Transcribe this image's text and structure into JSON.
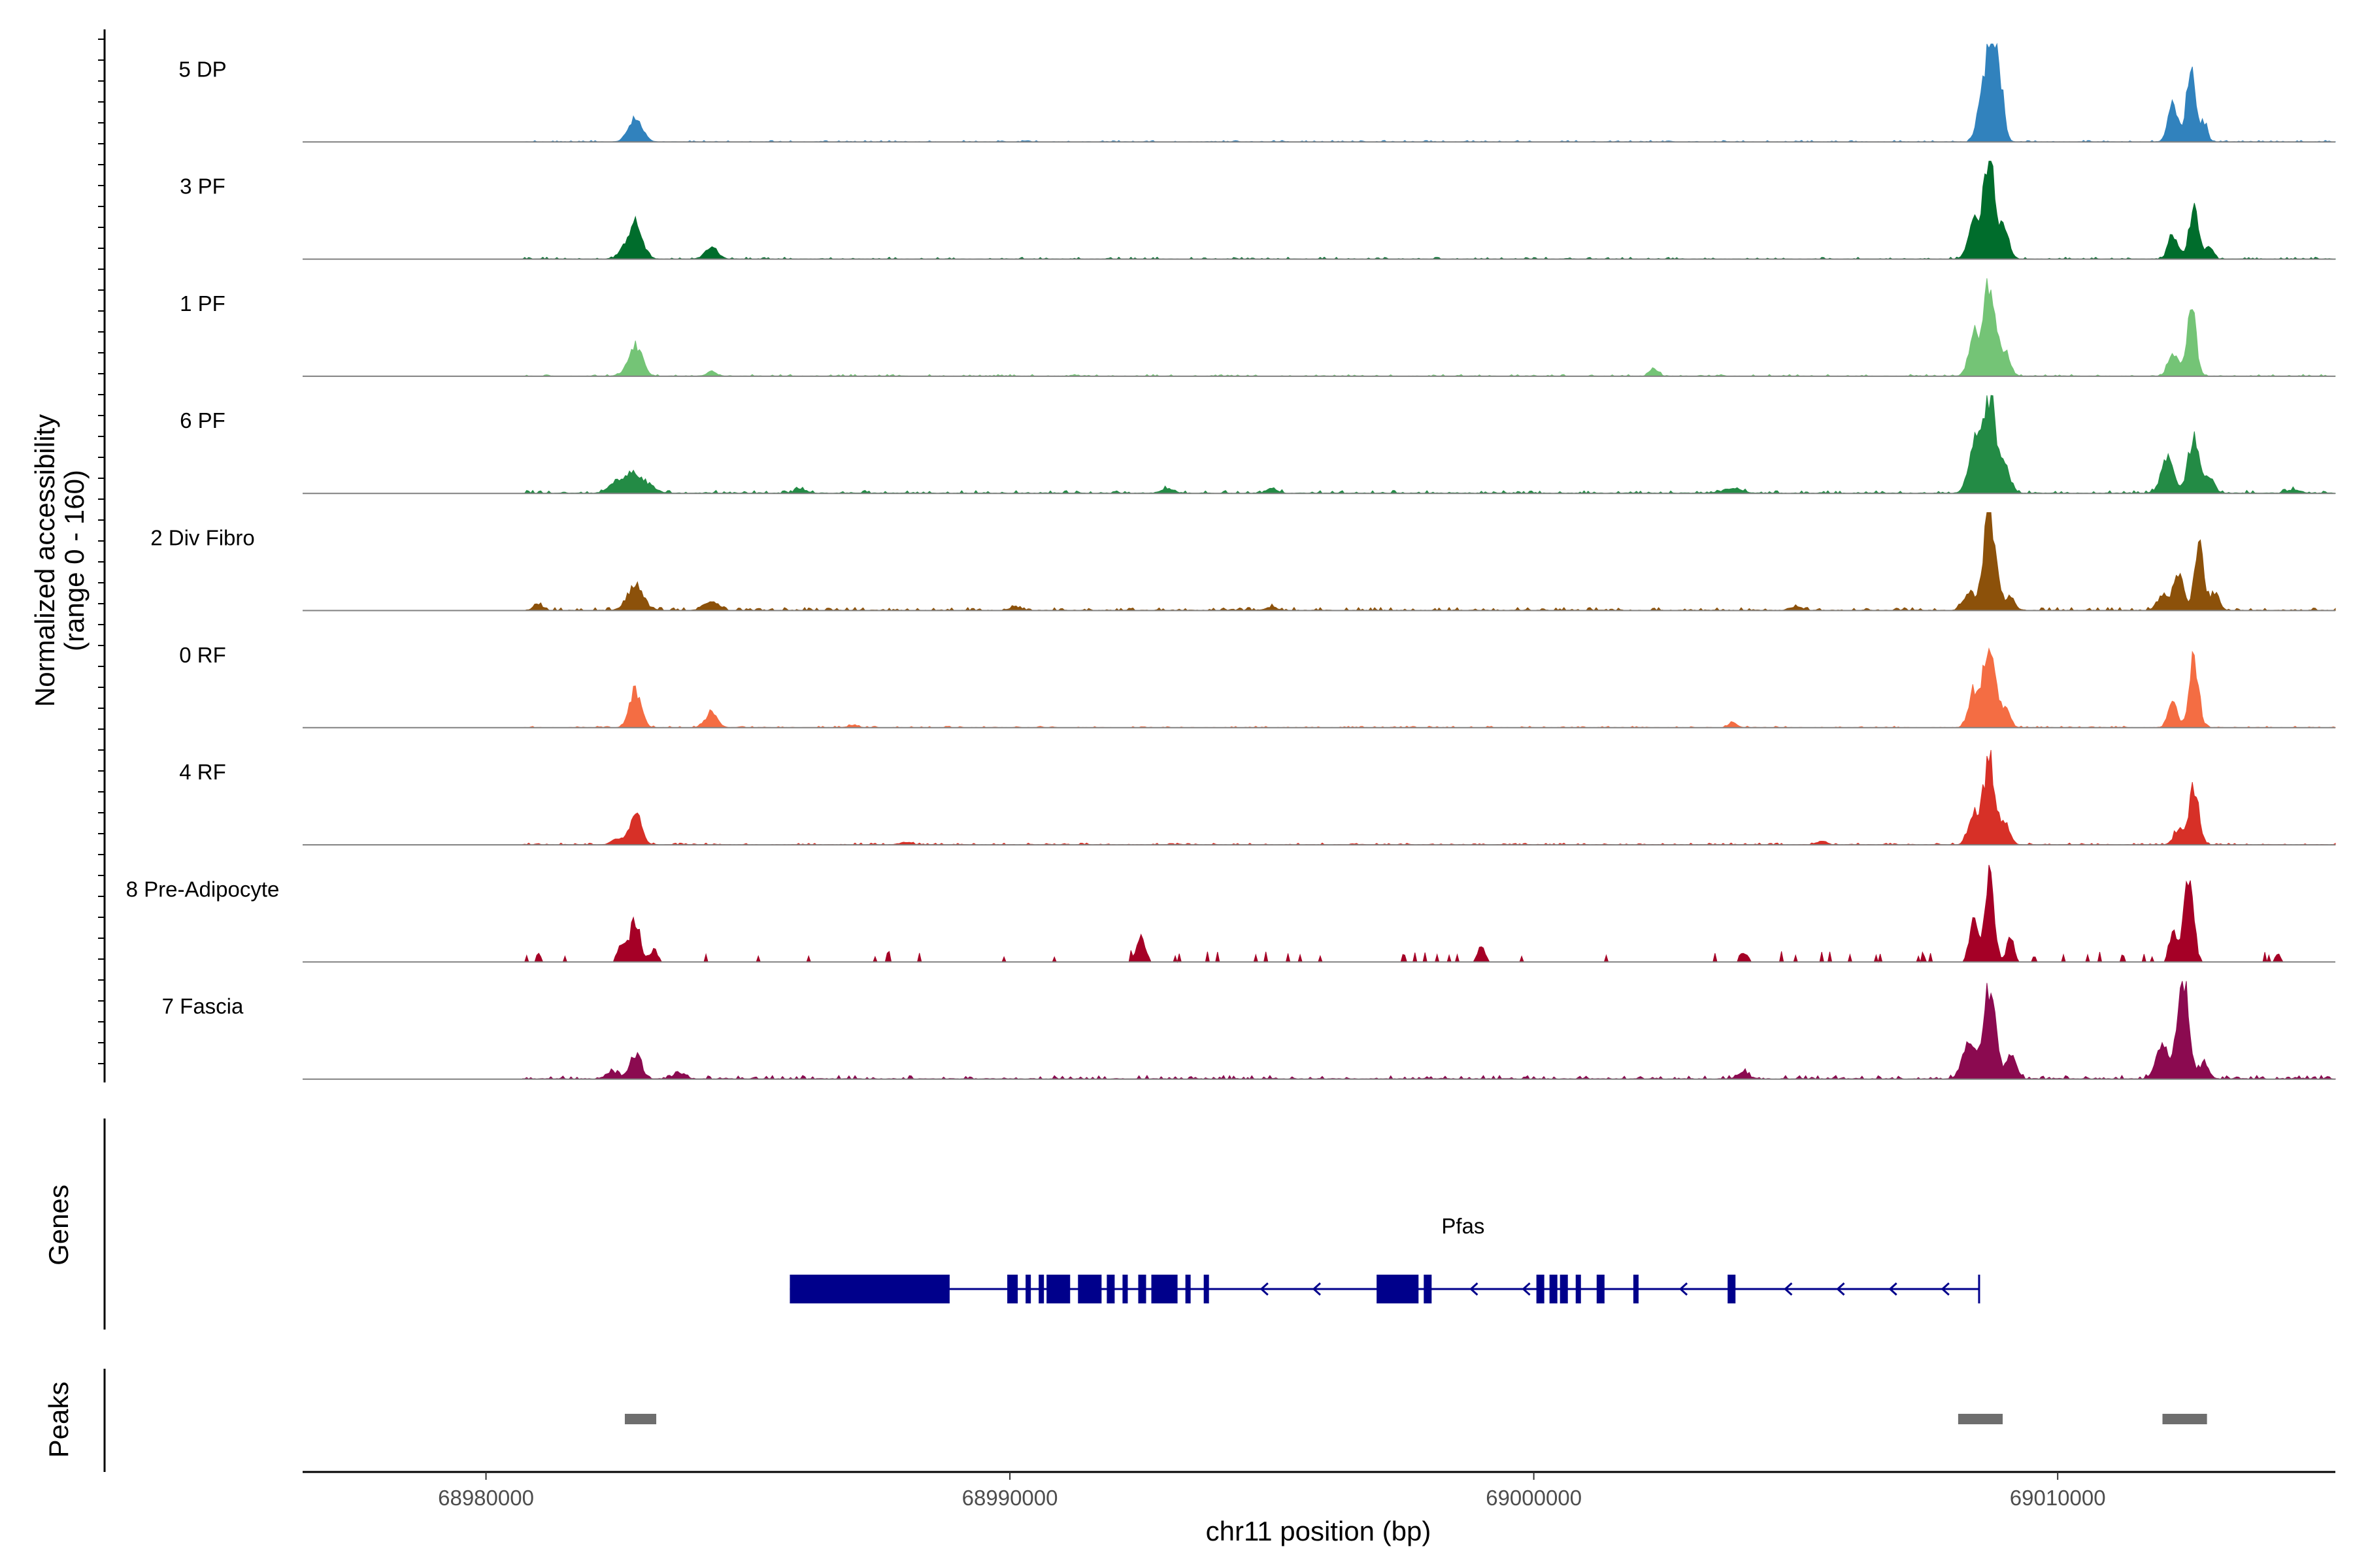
{
  "chart_data": {
    "type": "coverage",
    "y_axis_title": "Normalized accessibility",
    "y_axis_subtitle": "(range 0 - 160)",
    "y_range": [
      0,
      160
    ],
    "x_axis_title": "chr11 position (bp)",
    "x_range": [
      68976500,
      69015300
    ],
    "x_ticks": [
      68980000,
      68990000,
      69000000,
      69010000
    ],
    "x_tick_labels": [
      "68980000",
      "68990000",
      "69000000",
      "69010000"
    ],
    "region_start": 68980700,
    "region_end": 69015300,
    "tracks": [
      {
        "name": "5 DP",
        "color": "#3182bd",
        "peaks": [
          [
            68982850,
            40,
            130
          ],
          [
            69008750,
            150,
            110
          ],
          [
            69008550,
            75,
            90
          ],
          [
            69008900,
            60,
            80
          ],
          [
            69012200,
            60,
            90
          ],
          [
            69012550,
            120,
            90
          ],
          [
            69012800,
            30,
            60
          ]
        ],
        "noise": 2.5
      },
      {
        "name": "3 PF",
        "color": "#006d2c",
        "peaks": [
          [
            68982850,
            60,
            130
          ],
          [
            68982600,
            10,
            90
          ],
          [
            68984300,
            18,
            120
          ],
          [
            69008700,
            150,
            120
          ],
          [
            69008400,
            55,
            110
          ],
          [
            69009000,
            40,
            90
          ],
          [
            69012200,
            40,
            90
          ],
          [
            69012600,
            85,
            90
          ],
          [
            69012900,
            20,
            70
          ]
        ],
        "noise": 3
      },
      {
        "name": "1 PF",
        "color": "#74c476",
        "peaks": [
          [
            68982850,
            52,
            130
          ],
          [
            68984300,
            8,
            90
          ],
          [
            69008700,
            150,
            110
          ],
          [
            69008400,
            70,
            100
          ],
          [
            69009000,
            40,
            90
          ],
          [
            69002300,
            12,
            80
          ],
          [
            69012200,
            40,
            90
          ],
          [
            69012550,
            110,
            90
          ]
        ],
        "noise": 3
      },
      {
        "name": "6 PF",
        "color": "#238b45",
        "peaks": [
          [
            68982850,
            32,
            220
          ],
          [
            68982500,
            12,
            150
          ],
          [
            68986000,
            6,
            120
          ],
          [
            68993000,
            8,
            110
          ],
          [
            68995000,
            8,
            100
          ],
          [
            69003800,
            8,
            160
          ],
          [
            69008700,
            150,
            130
          ],
          [
            69008400,
            70,
            110
          ],
          [
            69009000,
            40,
            100
          ],
          [
            69012100,
            55,
            120
          ],
          [
            69012600,
            90,
            110
          ],
          [
            69012900,
            25,
            90
          ],
          [
            69014500,
            6,
            120
          ]
        ],
        "noise": 5
      },
      {
        "name": "2 Div Fibro",
        "color": "#8c510a",
        "peaks": [
          [
            68982850,
            42,
            150
          ],
          [
            68981000,
            8,
            90
          ],
          [
            68984300,
            14,
            130
          ],
          [
            68990100,
            6,
            90
          ],
          [
            68995000,
            6,
            90
          ],
          [
            69005000,
            6,
            110
          ],
          [
            69008700,
            160,
            120
          ],
          [
            69008300,
            30,
            100
          ],
          [
            69009100,
            20,
            90
          ],
          [
            69012000,
            25,
            100
          ],
          [
            69012300,
            65,
            90
          ],
          [
            69012700,
            100,
            90
          ],
          [
            69013000,
            30,
            80
          ]
        ],
        "noise": 5
      },
      {
        "name": "0 RF",
        "color": "#f46d43",
        "peaks": [
          [
            68982850,
            60,
            110
          ],
          [
            68984300,
            25,
            110
          ],
          [
            68987000,
            4,
            90
          ],
          [
            69003800,
            8,
            80
          ],
          [
            69008700,
            140,
            110
          ],
          [
            69008400,
            60,
            100
          ],
          [
            69009000,
            30,
            90
          ],
          [
            69012200,
            40,
            90
          ],
          [
            69012600,
            110,
            90
          ]
        ],
        "noise": 2.5
      },
      {
        "name": "4 RF",
        "color": "#d73027",
        "peaks": [
          [
            68982850,
            50,
            110
          ],
          [
            68982500,
            10,
            100
          ],
          [
            68988000,
            4,
            110
          ],
          [
            69005500,
            6,
            90
          ],
          [
            69008700,
            140,
            110
          ],
          [
            69008400,
            55,
            100
          ],
          [
            69009000,
            35,
            90
          ],
          [
            69012600,
            90,
            90
          ],
          [
            69012300,
            25,
            90
          ]
        ],
        "noise": 3
      },
      {
        "name": "8 Pre-Adipocyte",
        "color": "#a50026",
        "peaks": [
          [
            68982850,
            70,
            90
          ],
          [
            68982600,
            30,
            80
          ],
          [
            68983200,
            20,
            80
          ],
          [
            68981000,
            12,
            60
          ],
          [
            68992500,
            40,
            90
          ],
          [
            68999000,
            25,
            70
          ],
          [
            69004000,
            15,
            80
          ],
          [
            69008700,
            140,
            90
          ],
          [
            69008400,
            80,
            80
          ],
          [
            69009100,
            40,
            70
          ],
          [
            69012500,
            140,
            90
          ],
          [
            69012200,
            50,
            70
          ],
          [
            69014200,
            12,
            60
          ]
        ],
        "noise": 4,
        "sparse": true
      },
      {
        "name": "7 Fascia",
        "color": "#8b0a50",
        "peaks": [
          [
            68982850,
            42,
            110
          ],
          [
            68982400,
            12,
            110
          ],
          [
            68983700,
            10,
            110
          ],
          [
            69004000,
            10,
            110
          ],
          [
            69008700,
            145,
            110
          ],
          [
            69008300,
            60,
            120
          ],
          [
            69009100,
            40,
            100
          ],
          [
            69012400,
            160,
            110
          ],
          [
            69012000,
            50,
            120
          ],
          [
            69012800,
            25,
            90
          ]
        ],
        "noise": 6
      }
    ],
    "genes": [
      {
        "name": "Pfas",
        "strand": "-",
        "color": "#00008b",
        "start": 68985800,
        "end": 69008500,
        "exons": [
          [
            68985800,
            68988850
          ],
          [
            68989950,
            68990150
          ],
          [
            68990300,
            68990400
          ],
          [
            68990550,
            68990650
          ],
          [
            68990700,
            68991150
          ],
          [
            68991300,
            68991750
          ],
          [
            68991850,
            68992000
          ],
          [
            68992150,
            68992250
          ],
          [
            68992450,
            68992600
          ],
          [
            68992700,
            68993200
          ],
          [
            68993350,
            68993450
          ],
          [
            68993700,
            68993800
          ],
          [
            68997000,
            68997800
          ],
          [
            68997900,
            68998050
          ],
          [
            69000050,
            69000200
          ],
          [
            69000300,
            69000450
          ],
          [
            69000500,
            69000650
          ],
          [
            69000800,
            69000900
          ],
          [
            69001200,
            69001350
          ],
          [
            69001900,
            69002000
          ],
          [
            69003700,
            69003850
          ]
        ]
      }
    ],
    "peaks_track": {
      "title": "Peaks",
      "color": "#6e6e6e",
      "regions": [
        [
          68982650,
          68983250
        ],
        [
          69008100,
          69008950
        ],
        [
          69012000,
          69012850
        ]
      ]
    },
    "genes_track_title": "Genes"
  }
}
